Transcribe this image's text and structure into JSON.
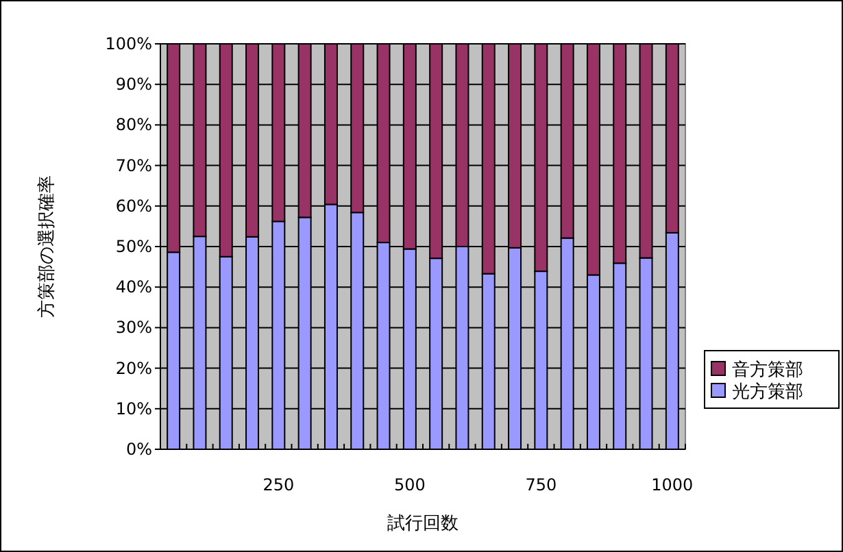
{
  "chart_data": {
    "type": "bar",
    "stacked": true,
    "xlabel": "試行回数",
    "ylabel": "方策部の選択確率",
    "categories": [
      null,
      null,
      null,
      null,
      "250",
      null,
      null,
      null,
      null,
      "500",
      null,
      null,
      null,
      null,
      "750",
      null,
      null,
      null,
      null,
      "1000"
    ],
    "series": [
      {
        "name": "光方策部",
        "color": "#9999ff",
        "values": [
          48.6,
          52.5,
          47.5,
          52.4,
          56.2,
          57.2,
          60.4,
          58.4,
          51,
          49.4,
          47.1,
          50,
          43.3,
          49.7,
          43.9,
          52.1,
          43,
          45.9,
          47.2,
          53.4
        ]
      },
      {
        "name": "音方策部",
        "color": "#993366",
        "values": [
          51.4,
          47.5,
          52.5,
          47.6,
          43.8,
          42.8,
          39.6,
          41.6,
          49,
          50.6,
          52.9,
          50,
          56.7,
          50.3,
          56.1,
          47.9,
          57,
          54.1,
          52.8,
          46.6
        ]
      }
    ],
    "ylim": [
      0,
      100
    ],
    "yticks": [
      {
        "value": 0,
        "label": "0%"
      },
      {
        "value": 10,
        "label": "10%"
      },
      {
        "value": 20,
        "label": "20%"
      },
      {
        "value": 30,
        "label": "30%"
      },
      {
        "value": 40,
        "label": "40%"
      },
      {
        "value": 50,
        "label": "50%"
      },
      {
        "value": 60,
        "label": "60%"
      },
      {
        "value": 70,
        "label": "70%"
      },
      {
        "value": 80,
        "label": "80%"
      },
      {
        "value": 90,
        "label": "90%"
      },
      {
        "value": 100,
        "label": "100%"
      }
    ],
    "grid": "y",
    "legend": "right"
  }
}
